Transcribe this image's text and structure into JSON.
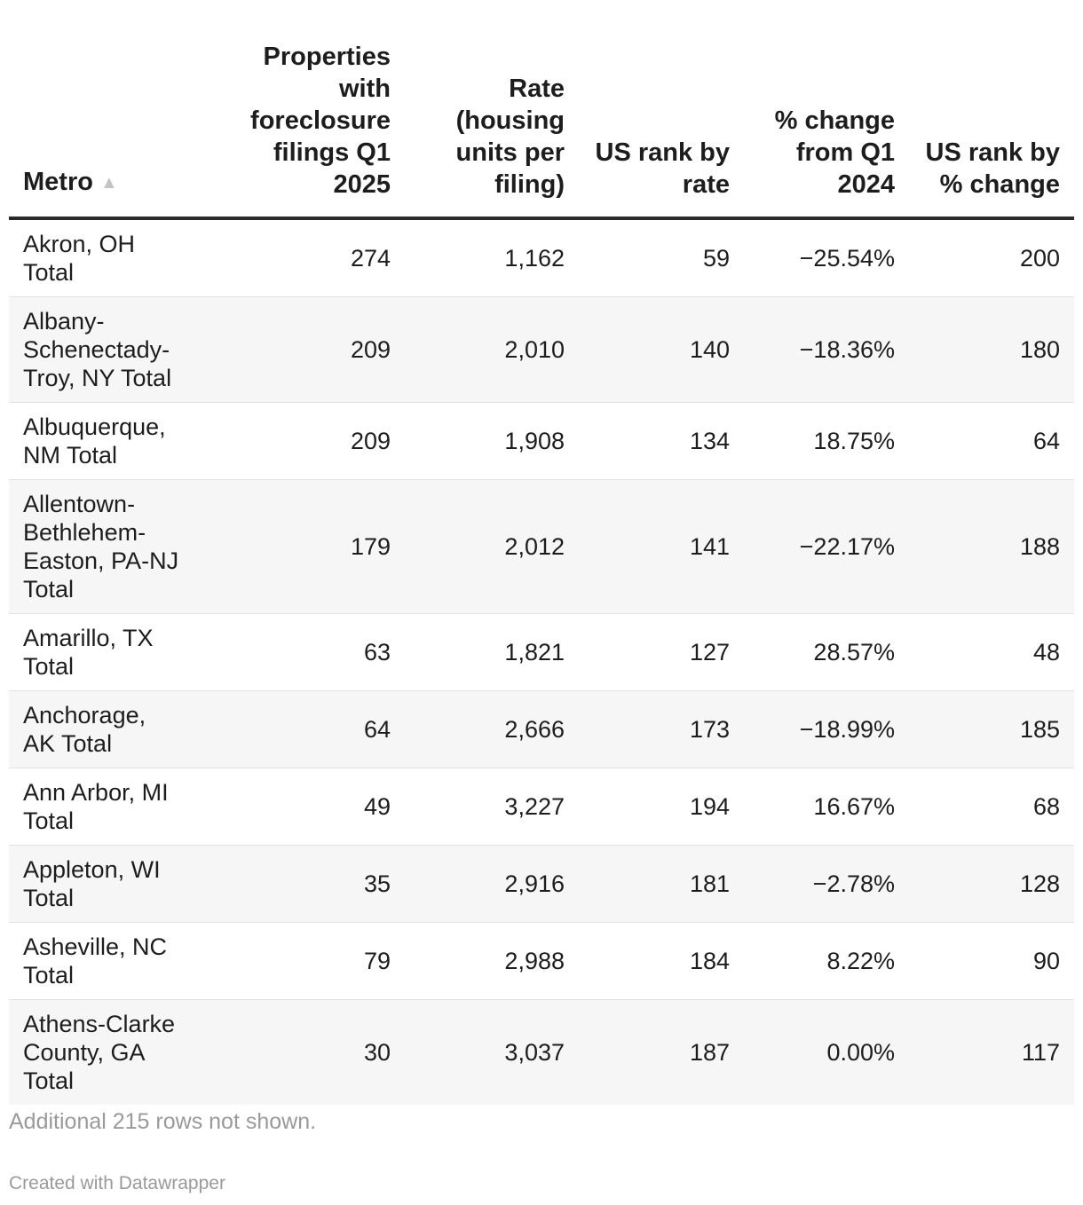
{
  "chart_data": {
    "type": "table",
    "columns": [
      "Metro",
      "Properties with foreclosure filings Q1 2025",
      "Rate (housing units per filing)",
      "US rank by rate",
      "% change from Q1 2024",
      "US rank by % change"
    ],
    "sort_column": "Metro",
    "sort_direction": "ascending",
    "rows": [
      [
        "Akron, OH Total",
        "274",
        "1,162",
        "59",
        "−25.54%",
        "200"
      ],
      [
        "Albany-Schenectady-Troy, NY Total",
        "209",
        "2,010",
        "140",
        "−18.36%",
        "180"
      ],
      [
        "Albuquerque, NM Total",
        "209",
        "1,908",
        "134",
        "18.75%",
        "64"
      ],
      [
        "Allentown-Bethlehem-Easton, PA-NJ Total",
        "179",
        "2,012",
        "141",
        "−22.17%",
        "188"
      ],
      [
        "Amarillo, TX Total",
        "63",
        "1,821",
        "127",
        "28.57%",
        "48"
      ],
      [
        "Anchorage, AK Total",
        "64",
        "2,666",
        "173",
        "−18.99%",
        "185"
      ],
      [
        "Ann Arbor, MI Total",
        "49",
        "3,227",
        "194",
        "16.67%",
        "68"
      ],
      [
        "Appleton, WI Total",
        "35",
        "2,916",
        "181",
        "−2.78%",
        "128"
      ],
      [
        "Asheville, NC Total",
        "79",
        "2,988",
        "184",
        "8.22%",
        "90"
      ],
      [
        "Athens-Clarke County, GA Total",
        "30",
        "3,037",
        "187",
        "0.00%",
        "117"
      ]
    ],
    "notes": "Additional 215 rows not shown.",
    "credit": "Created with Datawrapper"
  },
  "colors": {
    "text": "#1d1d1d",
    "muted": "#9a9a9a",
    "stripe": "#f6f6f6",
    "rule": "#2a2a2a",
    "sort_icon": "#c4c4c4"
  },
  "icons": {
    "sort": "sort-ascending-icon"
  }
}
